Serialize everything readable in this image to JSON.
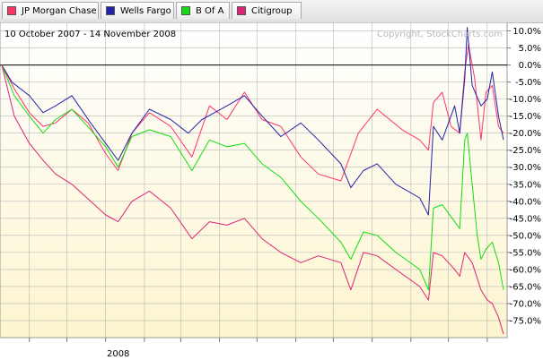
{
  "legend": [
    {
      "name": "JP Morgan Chase",
      "color": "#ff3366"
    },
    {
      "name": "Wells Fargo",
      "color": "#2222aa"
    },
    {
      "name": "B Of A",
      "color": "#11dd11"
    },
    {
      "name": "Citigroup",
      "color": "#dd2277"
    }
  ],
  "chart_data": {
    "type": "line",
    "date_range": "10 October 2007 - 14 November 2008",
    "copyright": "Copyright, StockCharts.com",
    "ylim": [
      -80,
      12.5
    ],
    "y_ticks": [
      10,
      5,
      0,
      -5,
      -10,
      -15,
      -20,
      -25,
      -30,
      -35,
      -40,
      -45,
      -50,
      -55,
      -60,
      -65,
      -70,
      -75
    ],
    "y_tick_labels": [
      "10.0%",
      "5.0%",
      "0.0%",
      "-5.0%",
      "-10.0%",
      "-15.0%",
      "-20.0%",
      "-25.0%",
      "-30.0%",
      "-35.0%",
      "-40.0%",
      "-45.0%",
      "-50.0%",
      "-55.0%",
      "-60.0%",
      "-65.0%",
      "-70.0%",
      "-75.0%"
    ],
    "x_date_range": [
      "2007-10-10",
      "2008-11-14"
    ],
    "x_tick_label": "2008",
    "x_tick_label_date": "2008-01-01",
    "x_gridline_dates": [
      "2007-11-01",
      "2007-12-01",
      "2008-01-01",
      "2008-02-01",
      "2008-03-01",
      "2008-04-01",
      "2008-05-01",
      "2008-06-01",
      "2008-07-01",
      "2008-08-01",
      "2008-09-01",
      "2008-10-01",
      "2008-11-01"
    ],
    "grid": true,
    "baseline": 0,
    "series": [
      {
        "name": "JP Morgan Chase",
        "color": "#ff3366",
        "points": [
          [
            "2007-10-10",
            0
          ],
          [
            "2007-10-20",
            -7
          ],
          [
            "2007-11-01",
            -14
          ],
          [
            "2007-11-12",
            -18
          ],
          [
            "2007-11-22",
            -17
          ],
          [
            "2007-12-05",
            -13
          ],
          [
            "2007-12-18",
            -17
          ],
          [
            "2008-01-01",
            -26
          ],
          [
            "2008-01-11",
            -31
          ],
          [
            "2008-01-22",
            -20
          ],
          [
            "2008-02-05",
            -14
          ],
          [
            "2008-02-22",
            -18
          ],
          [
            "2008-03-10",
            -27
          ],
          [
            "2008-03-24",
            -12
          ],
          [
            "2008-04-07",
            -16
          ],
          [
            "2008-04-21",
            -8
          ],
          [
            "2008-05-05",
            -16
          ],
          [
            "2008-05-20",
            -18
          ],
          [
            "2008-06-05",
            -27
          ],
          [
            "2008-06-19",
            -32
          ],
          [
            "2008-07-07",
            -34
          ],
          [
            "2008-07-21",
            -20
          ],
          [
            "2008-08-05",
            -13
          ],
          [
            "2008-08-25",
            -19
          ],
          [
            "2008-09-08",
            -22
          ],
          [
            "2008-09-15",
            -25
          ],
          [
            "2008-09-19",
            -11
          ],
          [
            "2008-09-26",
            -8
          ],
          [
            "2008-10-03",
            -18
          ],
          [
            "2008-10-10",
            -20
          ],
          [
            "2008-10-14",
            -2
          ],
          [
            "2008-10-17",
            6
          ],
          [
            "2008-10-22",
            -4
          ],
          [
            "2008-10-27",
            -22
          ],
          [
            "2008-10-31",
            -8
          ],
          [
            "2008-11-05",
            -6
          ],
          [
            "2008-11-10",
            -18
          ],
          [
            "2008-11-14",
            -20
          ]
        ]
      },
      {
        "name": "Wells Fargo",
        "color": "#2222aa",
        "points": [
          [
            "2007-10-10",
            0
          ],
          [
            "2007-10-18",
            -5
          ],
          [
            "2007-11-01",
            -9
          ],
          [
            "2007-11-12",
            -14
          ],
          [
            "2007-11-22",
            -12
          ],
          [
            "2007-12-05",
            -9
          ],
          [
            "2007-12-20",
            -17
          ],
          [
            "2008-01-01",
            -23
          ],
          [
            "2008-01-11",
            -28
          ],
          [
            "2008-01-22",
            -20
          ],
          [
            "2008-02-05",
            -13
          ],
          [
            "2008-02-22",
            -16
          ],
          [
            "2008-03-07",
            -20
          ],
          [
            "2008-03-18",
            -16
          ],
          [
            "2008-04-07",
            -12
          ],
          [
            "2008-04-21",
            -9
          ],
          [
            "2008-05-05",
            -15
          ],
          [
            "2008-05-20",
            -21
          ],
          [
            "2008-06-05",
            -17
          ],
          [
            "2008-06-19",
            -22
          ],
          [
            "2008-07-07",
            -29
          ],
          [
            "2008-07-15",
            -36
          ],
          [
            "2008-07-25",
            -31
          ],
          [
            "2008-08-05",
            -29
          ],
          [
            "2008-08-20",
            -35
          ],
          [
            "2008-09-08",
            -39
          ],
          [
            "2008-09-15",
            -44
          ],
          [
            "2008-09-19",
            -18
          ],
          [
            "2008-09-26",
            -22
          ],
          [
            "2008-10-06",
            -12
          ],
          [
            "2008-10-10",
            -20
          ],
          [
            "2008-10-14",
            -4
          ],
          [
            "2008-10-16",
            11
          ],
          [
            "2008-10-20",
            -6
          ],
          [
            "2008-10-27",
            -12
          ],
          [
            "2008-11-01",
            -10
          ],
          [
            "2008-11-05",
            -2
          ],
          [
            "2008-11-10",
            -15
          ],
          [
            "2008-11-14",
            -22
          ]
        ]
      },
      {
        "name": "B Of A",
        "color": "#11dd11",
        "points": [
          [
            "2007-10-10",
            0
          ],
          [
            "2007-10-20",
            -9
          ],
          [
            "2007-11-01",
            -15
          ],
          [
            "2007-11-12",
            -20
          ],
          [
            "2007-11-22",
            -16
          ],
          [
            "2007-12-05",
            -13
          ],
          [
            "2007-12-20",
            -19
          ],
          [
            "2008-01-01",
            -24
          ],
          [
            "2008-01-11",
            -30
          ],
          [
            "2008-01-22",
            -21
          ],
          [
            "2008-02-05",
            -19
          ],
          [
            "2008-02-22",
            -21
          ],
          [
            "2008-03-10",
            -31
          ],
          [
            "2008-03-24",
            -22
          ],
          [
            "2008-04-07",
            -24
          ],
          [
            "2008-04-21",
            -23
          ],
          [
            "2008-05-05",
            -29
          ],
          [
            "2008-05-20",
            -33
          ],
          [
            "2008-06-05",
            -40
          ],
          [
            "2008-06-19",
            -45
          ],
          [
            "2008-07-07",
            -52
          ],
          [
            "2008-07-15",
            -57
          ],
          [
            "2008-07-25",
            -49
          ],
          [
            "2008-08-05",
            -50
          ],
          [
            "2008-08-20",
            -55
          ],
          [
            "2008-09-08",
            -60
          ],
          [
            "2008-09-15",
            -66
          ],
          [
            "2008-09-19",
            -42
          ],
          [
            "2008-09-26",
            -41
          ],
          [
            "2008-10-06",
            -46
          ],
          [
            "2008-10-10",
            -48
          ],
          [
            "2008-10-14",
            -22
          ],
          [
            "2008-10-16",
            -20
          ],
          [
            "2008-10-20",
            -35
          ],
          [
            "2008-10-24",
            -50
          ],
          [
            "2008-10-27",
            -57
          ],
          [
            "2008-10-31",
            -54
          ],
          [
            "2008-11-05",
            -52
          ],
          [
            "2008-11-10",
            -58
          ],
          [
            "2008-11-14",
            -66
          ]
        ]
      },
      {
        "name": "Citigroup",
        "color": "#dd2277",
        "points": [
          [
            "2007-10-10",
            0
          ],
          [
            "2007-10-20",
            -15
          ],
          [
            "2007-11-01",
            -23
          ],
          [
            "2007-11-12",
            -28
          ],
          [
            "2007-11-22",
            -32
          ],
          [
            "2007-12-05",
            -35
          ],
          [
            "2007-12-20",
            -40
          ],
          [
            "2008-01-01",
            -44
          ],
          [
            "2008-01-11",
            -46
          ],
          [
            "2008-01-22",
            -40
          ],
          [
            "2008-02-05",
            -37
          ],
          [
            "2008-02-22",
            -42
          ],
          [
            "2008-03-10",
            -51
          ],
          [
            "2008-03-24",
            -46
          ],
          [
            "2008-04-07",
            -47
          ],
          [
            "2008-04-21",
            -45
          ],
          [
            "2008-05-05",
            -51
          ],
          [
            "2008-05-20",
            -55
          ],
          [
            "2008-06-05",
            -58
          ],
          [
            "2008-06-19",
            -56
          ],
          [
            "2008-07-07",
            -58
          ],
          [
            "2008-07-15",
            -66
          ],
          [
            "2008-07-25",
            -55
          ],
          [
            "2008-08-05",
            -56
          ],
          [
            "2008-08-20",
            -60
          ],
          [
            "2008-09-08",
            -65
          ],
          [
            "2008-09-15",
            -69
          ],
          [
            "2008-09-19",
            -55
          ],
          [
            "2008-09-26",
            -56
          ],
          [
            "2008-10-06",
            -60
          ],
          [
            "2008-10-10",
            -62
          ],
          [
            "2008-10-14",
            -55
          ],
          [
            "2008-10-20",
            -58
          ],
          [
            "2008-10-27",
            -66
          ],
          [
            "2008-11-01",
            -69
          ],
          [
            "2008-11-05",
            -70
          ],
          [
            "2008-11-10",
            -74
          ],
          [
            "2008-11-14",
            -79
          ]
        ]
      }
    ]
  }
}
